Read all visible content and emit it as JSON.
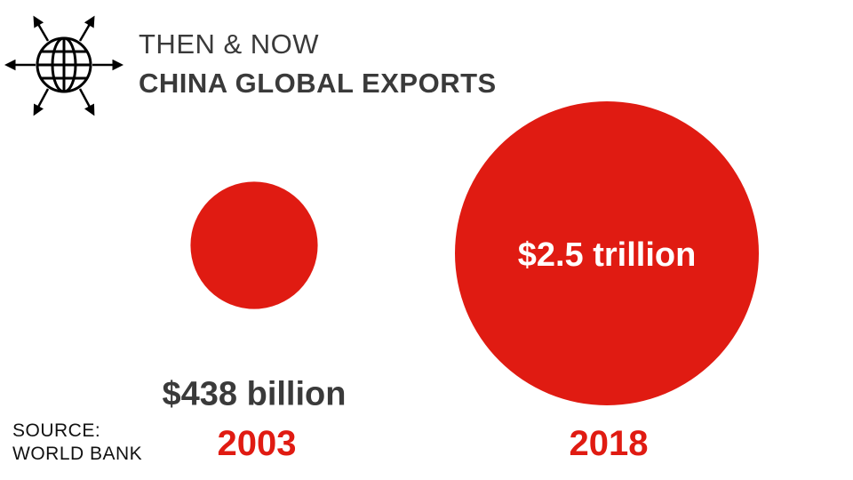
{
  "header": {
    "icon": "globe-with-arrows-icon",
    "line1": "THEN & NOW",
    "line2": "CHINA GLOBAL EXPORTS"
  },
  "source": {
    "line1": "SOURCE:",
    "line2": "WORLD BANK"
  },
  "colors": {
    "bubble": "#e01b12",
    "value_text": "#3a3a3a",
    "year_text": "#e01b12"
  },
  "chart_data": {
    "type": "bubble",
    "title": "CHINA GLOBAL EXPORTS",
    "subtitle": "THEN & NOW",
    "unit": "USD",
    "series": [
      {
        "categories": [
          "2003",
          "2018"
        ],
        "values": [
          438,
          2500
        ],
        "value_units": "billion",
        "labels": [
          "$438 billion",
          "$2.5 trillion"
        ]
      }
    ],
    "categories": [
      "2003",
      "2018"
    ],
    "values": [
      438,
      2500
    ],
    "labels": [
      "$438 billion",
      "$2.5 trillion"
    ]
  }
}
